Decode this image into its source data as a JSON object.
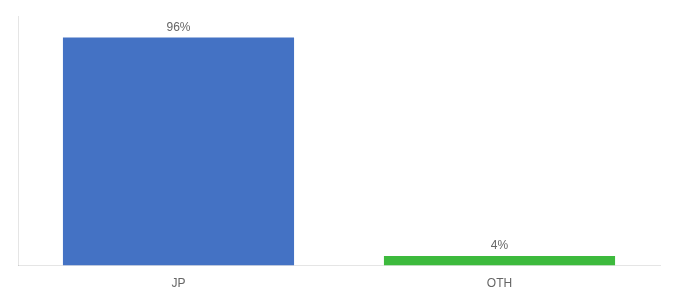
{
  "chart_data": {
    "type": "bar",
    "categories": [
      "JP",
      "OTH"
    ],
    "values": [
      96,
      4
    ],
    "value_labels": [
      "96%",
      "4%"
    ],
    "colors": [
      "#4472c4",
      "#3dba3d"
    ],
    "ylim": [
      0,
      105
    ],
    "grid": false,
    "tick_labels": "x",
    "data_labels": true
  }
}
